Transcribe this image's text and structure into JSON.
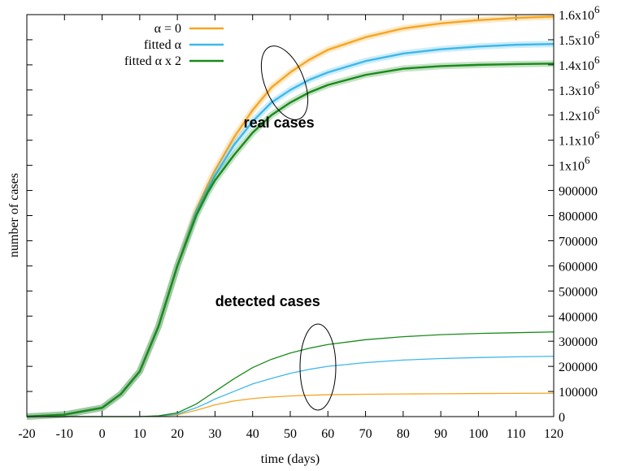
{
  "chart_data": {
    "type": "line",
    "xlabel": "time (days)",
    "ylabel": "number of cases",
    "xlim": [
      -20,
      120
    ],
    "ylim": [
      0,
      1600000
    ],
    "x_ticks": [
      -20,
      -10,
      0,
      10,
      20,
      30,
      40,
      50,
      60,
      70,
      80,
      90,
      100,
      110,
      120
    ],
    "y_ticks": [
      {
        "value": 0,
        "label": "0"
      },
      {
        "value": 100000,
        "label": "100000"
      },
      {
        "value": 200000,
        "label": "200000"
      },
      {
        "value": 300000,
        "label": "300000"
      },
      {
        "value": 400000,
        "label": "400000"
      },
      {
        "value": 500000,
        "label": "500000"
      },
      {
        "value": 600000,
        "label": "600000"
      },
      {
        "value": 700000,
        "label": "700000"
      },
      {
        "value": 800000,
        "label": "800000"
      },
      {
        "value": 900000,
        "label": "900000"
      },
      {
        "value": 1000000,
        "label": "1x10",
        "exp": "6"
      },
      {
        "value": 1100000,
        "label": "1.1x10",
        "exp": "6"
      },
      {
        "value": 1200000,
        "label": "1.2x10",
        "exp": "6"
      },
      {
        "value": 1300000,
        "label": "1.3x10",
        "exp": "6"
      },
      {
        "value": 1400000,
        "label": "1.4x10",
        "exp": "6"
      },
      {
        "value": 1500000,
        "label": "1.5x10",
        "exp": "6"
      },
      {
        "value": 1600000,
        "label": "1.6x10",
        "exp": "6"
      }
    ],
    "y_axis_side": "right",
    "grid": false,
    "legend_position": "top-left",
    "x": [
      -20,
      -10,
      0,
      5,
      10,
      15,
      20,
      25,
      28,
      30,
      35,
      40,
      45,
      50,
      55,
      60,
      70,
      80,
      90,
      100,
      110,
      120
    ],
    "series": [
      {
        "name": "α = 0",
        "group": "real cases",
        "color": "#f5a623",
        "values": [
          0,
          8000,
          35000,
          90000,
          180000,
          360000,
          600000,
          820000,
          920000,
          980000,
          1110000,
          1220000,
          1310000,
          1370000,
          1420000,
          1460000,
          1510000,
          1545000,
          1565000,
          1578000,
          1587000,
          1592000
        ]
      },
      {
        "name": "fitted α",
        "group": "real cases",
        "color": "#3db8ea",
        "values": [
          0,
          8000,
          35000,
          90000,
          180000,
          360000,
          600000,
          810000,
          900000,
          960000,
          1080000,
          1175000,
          1250000,
          1300000,
          1340000,
          1370000,
          1415000,
          1445000,
          1462000,
          1473000,
          1480000,
          1483000
        ]
      },
      {
        "name": "fitted α x 2",
        "group": "real cases",
        "color": "#1a8a1a",
        "values": [
          0,
          8000,
          35000,
          90000,
          180000,
          360000,
          600000,
          800000,
          890000,
          940000,
          1040000,
          1130000,
          1200000,
          1250000,
          1290000,
          1320000,
          1360000,
          1385000,
          1395000,
          1400000,
          1403000,
          1405000
        ]
      },
      {
        "name": "α = 0",
        "group": "detected cases",
        "color": "#f5a623",
        "values": [
          0,
          0,
          0,
          0,
          0,
          1500,
          7000,
          25000,
          38000,
          47000,
          62000,
          72000,
          78000,
          82000,
          85000,
          87000,
          89000,
          90000,
          91000,
          92000,
          92500,
          93000
        ]
      },
      {
        "name": "fitted α",
        "group": "detected cases",
        "color": "#3db8ea",
        "values": [
          0,
          0,
          0,
          0,
          0,
          2000,
          10000,
          35000,
          55000,
          70000,
          100000,
          130000,
          152000,
          172000,
          188000,
          200000,
          215000,
          225000,
          231000,
          235000,
          238000,
          240000
        ]
      },
      {
        "name": "fitted α x 2",
        "group": "detected cases",
        "color": "#1a8a1a",
        "values": [
          0,
          0,
          0,
          0,
          0,
          3000,
          15000,
          50000,
          80000,
          100000,
          150000,
          195000,
          228000,
          253000,
          272000,
          287000,
          306000,
          318000,
          326000,
          331000,
          334000,
          337000
        ]
      }
    ],
    "annotations": [
      {
        "text": "real cases",
        "x": 47,
        "y": 1150000
      },
      {
        "text": "detected cases",
        "x": 44,
        "y": 440000
      }
    ],
    "legend_entries": [
      {
        "label": "α = 0",
        "color": "#f5a623"
      },
      {
        "label": "fitted α",
        "color": "#3db8ea"
      },
      {
        "label": "fitted α x 2",
        "color": "#1a8a1a"
      }
    ]
  }
}
